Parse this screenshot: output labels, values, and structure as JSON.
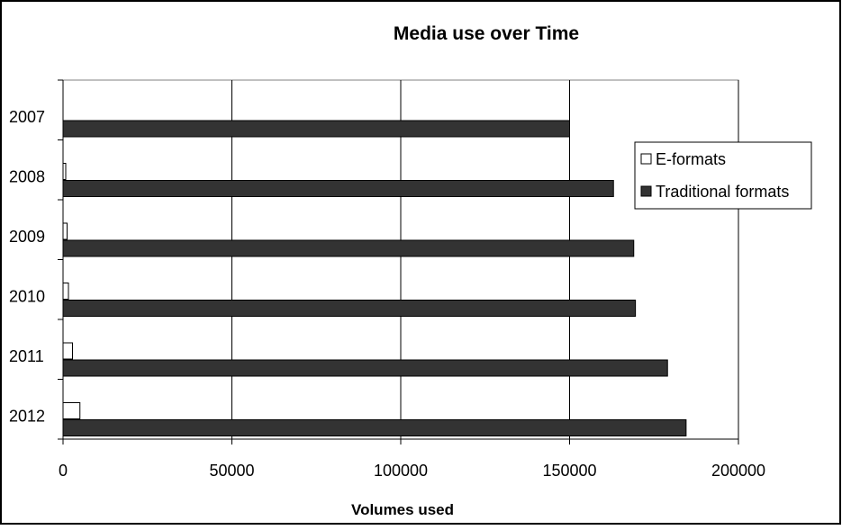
{
  "chart_data": {
    "type": "bar",
    "orientation": "horizontal",
    "title": "Media use over Time",
    "xlabel": "Volumes used",
    "ylabel": "",
    "categories": [
      "2007",
      "2008",
      "2009",
      "2010",
      "2011",
      "2012"
    ],
    "series": [
      {
        "name": "E-formats",
        "color": "#ffffff",
        "values": [
          0,
          800,
          1200,
          1600,
          2800,
          5000
        ]
      },
      {
        "name": "Traditional formats",
        "color": "#333333",
        "values": [
          150000,
          163000,
          169000,
          169500,
          179000,
          184500
        ]
      }
    ],
    "xlim": [
      0,
      200000
    ],
    "x_ticks": [
      "0",
      "50000",
      "100000",
      "150000",
      "200000"
    ],
    "grid": "vertical",
    "legend_position": "right"
  }
}
